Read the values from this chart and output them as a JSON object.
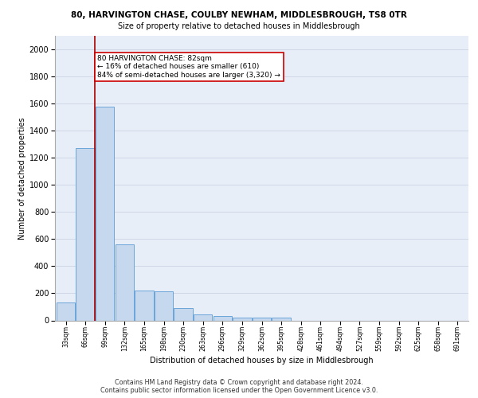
{
  "title1": "80, HARVINGTON CHASE, COULBY NEWHAM, MIDDLESBROUGH, TS8 0TR",
  "title2": "Size of property relative to detached houses in Middlesbrough",
  "xlabel": "Distribution of detached houses by size in Middlesbrough",
  "ylabel": "Number of detached properties",
  "footer1": "Contains HM Land Registry data © Crown copyright and database right 2024.",
  "footer2": "Contains public sector information licensed under the Open Government Licence v3.0.",
  "categories": [
    "33sqm",
    "66sqm",
    "99sqm",
    "132sqm",
    "165sqm",
    "198sqm",
    "230sqm",
    "263sqm",
    "296sqm",
    "329sqm",
    "362sqm",
    "395sqm",
    "428sqm",
    "461sqm",
    "494sqm",
    "527sqm",
    "559sqm",
    "592sqm",
    "625sqm",
    "658sqm",
    "691sqm"
  ],
  "values": [
    130,
    1270,
    1580,
    560,
    220,
    215,
    90,
    45,
    30,
    20,
    20,
    20,
    0,
    0,
    0,
    0,
    0,
    0,
    0,
    0,
    0
  ],
  "bar_color": "#c5d8ed",
  "bar_edge_color": "#5b9bd5",
  "property_line_color": "#aa0000",
  "annotation_text": "80 HARVINGTON CHASE: 82sqm\n← 16% of detached houses are smaller (610)\n84% of semi-detached houses are larger (3,320) →",
  "annotation_box_color": "#ffffff",
  "annotation_box_edge": "#cc0000",
  "ylim": [
    0,
    2100
  ],
  "yticks": [
    0,
    200,
    400,
    600,
    800,
    1000,
    1200,
    1400,
    1600,
    1800,
    2000
  ],
  "grid_color": "#d0d8e8",
  "bg_color": "#e8eef8"
}
